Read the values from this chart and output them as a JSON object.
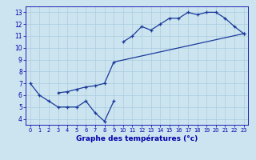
{
  "xlabel": "Graphe des températures (°c)",
  "hours": [
    0,
    1,
    2,
    3,
    4,
    5,
    6,
    7,
    8,
    9,
    10,
    11,
    12,
    13,
    14,
    15,
    16,
    17,
    18,
    19,
    20,
    21,
    22,
    23
  ],
  "line_low": [
    7.0,
    6.0,
    5.5,
    5.0,
    5.0,
    5.0,
    5.5,
    4.5,
    3.8,
    5.5,
    null,
    null,
    null,
    null,
    null,
    null,
    null,
    null,
    null,
    null,
    null,
    null,
    null,
    null
  ],
  "line_high": [
    null,
    null,
    null,
    null,
    null,
    null,
    null,
    null,
    null,
    null,
    10.5,
    11.0,
    11.8,
    11.5,
    12.0,
    12.5,
    12.5,
    13.0,
    12.8,
    13.0,
    13.0,
    12.5,
    11.8,
    11.2
  ],
  "line_diag": [
    null,
    null,
    null,
    6.2,
    6.3,
    6.5,
    6.7,
    6.8,
    7.0,
    8.8,
    null,
    null,
    null,
    null,
    null,
    null,
    null,
    null,
    null,
    null,
    null,
    null,
    null,
    11.2
  ],
  "line_color": "#1a3a9a",
  "bg_color": "#cce4f0",
  "grid_color": "#aaccdd",
  "label_color": "#0000aa",
  "xlim": [
    0,
    23
  ],
  "ylim": [
    3.5,
    13.5
  ],
  "yticks": [
    4,
    5,
    6,
    7,
    8,
    9,
    10,
    11,
    12,
    13
  ],
  "xticks": [
    0,
    1,
    2,
    3,
    4,
    5,
    6,
    7,
    8,
    9,
    10,
    11,
    12,
    13,
    14,
    15,
    16,
    17,
    18,
    19,
    20,
    21,
    22,
    23
  ],
  "tick_fontsize": 5.5,
  "xlabel_fontsize": 6.5,
  "lw": 0.9,
  "ms": 3.5
}
